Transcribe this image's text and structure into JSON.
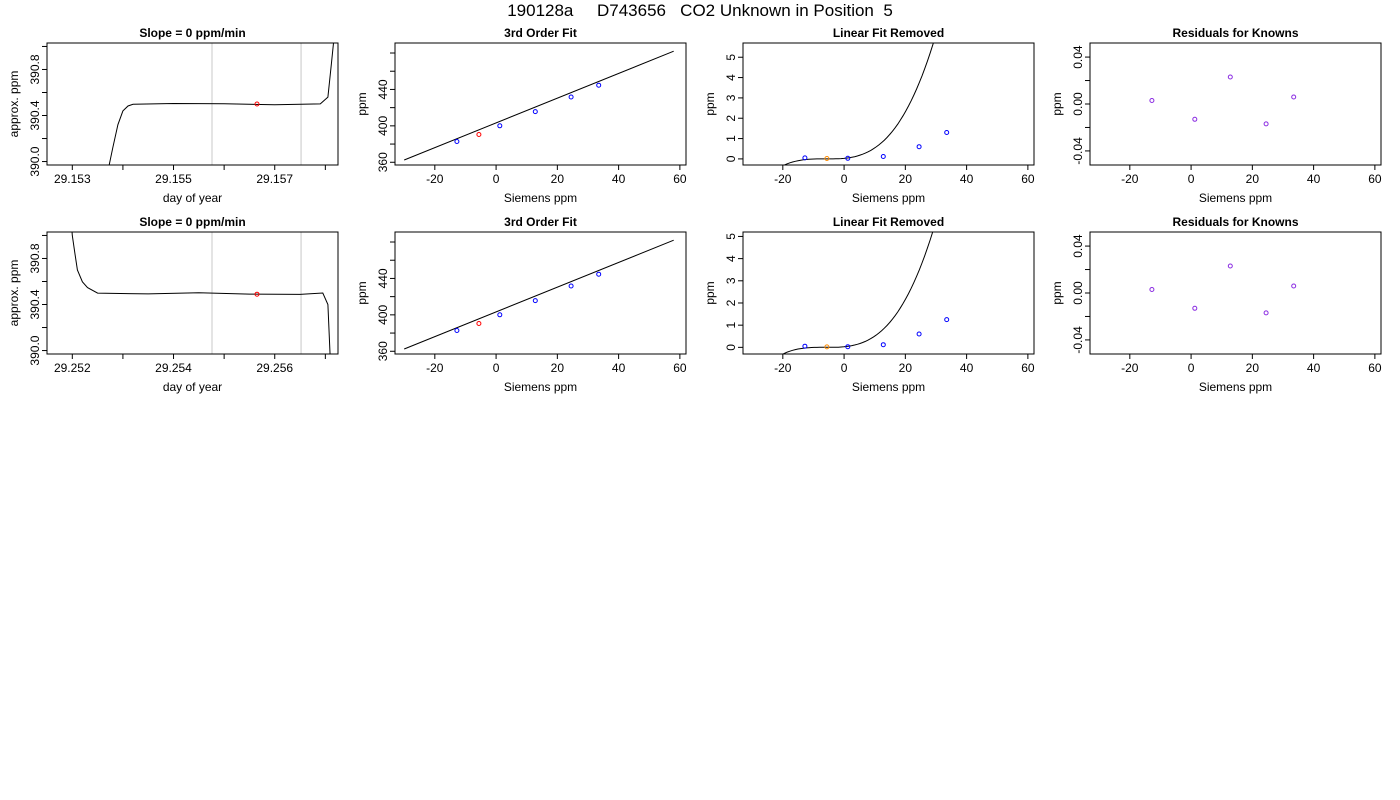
{
  "title": "190128a     D743656   CO2 Unknown in Position  5",
  "colors": {
    "line": "#000000",
    "known": "#0000ff",
    "unknown": "#ff0000",
    "unknown_alt": "#ff8c00",
    "residual": "#8a2be2",
    "marker": "#c8c8c8"
  },
  "chart_data": [
    {
      "type": "line",
      "title": "Slope =  0  ppm/min",
      "xlabel": "day of year",
      "ylabel": "approx. ppm",
      "xlim": [
        29.1525,
        29.15825
      ],
      "ylim": [
        389.97,
        391.03
      ],
      "x_ticks": [
        29.153,
        29.154,
        29.155,
        29.156,
        29.157,
        29.158
      ],
      "x_tick_labels": [
        "29.153",
        "",
        "29.155",
        "",
        "29.157",
        ""
      ],
      "y_ticks": [
        390.0,
        390.2,
        390.4,
        390.6,
        390.8,
        391.0
      ],
      "y_tick_labels": [
        "390.0",
        "",
        "390.4",
        "",
        "390.8",
        ""
      ],
      "vlines": [
        29.15576,
        29.15752
      ],
      "series": [
        {
          "role": "trace",
          "x": [
            29.15372,
            29.1538,
            29.1539,
            29.154,
            29.1541,
            29.1542,
            29.155,
            29.156,
            29.157,
            29.1579,
            29.15805,
            29.15812,
            29.1582
          ],
          "y": [
            389.95,
            390.12,
            390.32,
            390.44,
            390.485,
            390.5,
            390.505,
            390.5,
            390.49,
            390.5,
            390.56,
            390.85,
            391.2
          ]
        },
        {
          "role": "unknown",
          "x": [
            29.15665
          ],
          "y": [
            390.5
          ]
        }
      ]
    },
    {
      "type": "scatter",
      "title": "3rd Order Fit",
      "xlabel": "Siemens ppm",
      "ylabel": "ppm",
      "xlim": [
        -33,
        62
      ],
      "ylim": [
        357,
        491
      ],
      "x_ticks": [
        -20,
        0,
        20,
        40,
        60
      ],
      "x_tick_labels": [
        "-20",
        "0",
        "20",
        "40",
        "60"
      ],
      "y_ticks": [
        360,
        380,
        400,
        420,
        440,
        460,
        480
      ],
      "y_tick_labels": [
        "360",
        "",
        "400",
        "",
        "440",
        "",
        ""
      ],
      "series": [
        {
          "role": "fit",
          "x": [
            -30,
            58
          ],
          "y": [
            362.5,
            482.0
          ]
        },
        {
          "role": "known",
          "x": [
            -12.8,
            1.2,
            12.8,
            24.5,
            33.5
          ],
          "y": [
            382.8,
            400.1,
            415.6,
            431.7,
            444.6
          ]
        },
        {
          "role": "unknown",
          "x": [
            -5.6
          ],
          "y": [
            390.5
          ]
        }
      ]
    },
    {
      "type": "scatter",
      "title": "Linear Fit Removed",
      "xlabel": "Siemens ppm",
      "ylabel": "ppm",
      "xlim": [
        -33,
        62
      ],
      "ylim": [
        -0.3,
        5.7
      ],
      "x_ticks": [
        -20,
        0,
        20,
        40,
        60
      ],
      "x_tick_labels": [
        "-20",
        "0",
        "20",
        "40",
        "60"
      ],
      "y_ticks": [
        0,
        1,
        2,
        3,
        4,
        5
      ],
      "y_tick_labels": [
        "0",
        "1",
        "2",
        "3",
        "4",
        "5"
      ],
      "curve": {
        "x_from": -30,
        "x_to": 58,
        "x0": -5,
        "a": 0.00033,
        "b": 0.0119,
        "c": 0.00013
      },
      "series": [
        {
          "role": "known",
          "x": [
            -12.8,
            1.2,
            12.8,
            24.5,
            33.5
          ],
          "y": [
            0.05,
            0.03,
            0.12,
            0.6,
            1.3
          ]
        },
        {
          "role": "unknown",
          "x": [
            -5.6
          ],
          "y": [
            0.02
          ]
        }
      ]
    },
    {
      "type": "scatter",
      "title": "Residuals for Knowns",
      "xlabel": "Siemens ppm",
      "ylabel": "ppm",
      "xlim": [
        -33,
        62
      ],
      "ylim": [
        -0.052,
        0.052
      ],
      "x_ticks": [
        -20,
        0,
        20,
        40,
        60
      ],
      "x_tick_labels": [
        "-20",
        "0",
        "20",
        "40",
        "60"
      ],
      "y_ticks": [
        -0.04,
        -0.02,
        0.0,
        0.02,
        0.04
      ],
      "y_tick_labels": [
        "-0.04",
        "",
        "0.00",
        "",
        "0.04"
      ],
      "series": [
        {
          "role": "residual",
          "x": [
            -12.8,
            1.2,
            12.8,
            24.5,
            33.5
          ],
          "y": [
            0.003,
            -0.013,
            0.023,
            -0.017,
            0.006
          ]
        }
      ]
    },
    {
      "type": "line",
      "title": "Slope =  0  ppm/min",
      "xlabel": "day of year",
      "ylabel": "approx. ppm",
      "xlim": [
        29.2515,
        29.25725
      ],
      "ylim": [
        389.97,
        391.03
      ],
      "x_ticks": [
        29.252,
        29.253,
        29.254,
        29.255,
        29.256,
        29.257
      ],
      "x_tick_labels": [
        "29.252",
        "",
        "29.254",
        "",
        "29.256",
        ""
      ],
      "y_ticks": [
        390.0,
        390.2,
        390.4,
        390.6,
        390.8,
        391.0
      ],
      "y_tick_labels": [
        "390.0",
        "",
        "390.4",
        "",
        "390.8",
        ""
      ],
      "vlines": [
        29.25476,
        29.25652
      ],
      "series": [
        {
          "role": "trace",
          "x": [
            29.25195,
            29.252,
            29.25205,
            29.2521,
            29.2522,
            29.2523,
            29.2525,
            29.2535,
            29.2545,
            29.2555,
            29.2565,
            29.25695,
            29.25705,
            29.2571
          ],
          "y": [
            391.3,
            391.0,
            390.85,
            390.7,
            390.6,
            390.55,
            390.5,
            390.49,
            390.5,
            390.49,
            390.49,
            390.5,
            390.4,
            389.9
          ]
        },
        {
          "role": "unknown",
          "x": [
            29.25565
          ],
          "y": [
            390.49
          ]
        }
      ]
    },
    {
      "type": "scatter",
      "title": "3rd Order Fit",
      "xlabel": "Siemens ppm",
      "ylabel": "ppm",
      "xlim": [
        -33,
        62
      ],
      "ylim": [
        357,
        491
      ],
      "x_ticks": [
        -20,
        0,
        20,
        40,
        60
      ],
      "x_tick_labels": [
        "-20",
        "0",
        "20",
        "40",
        "60"
      ],
      "y_ticks": [
        360,
        380,
        400,
        420,
        440,
        460,
        480
      ],
      "y_tick_labels": [
        "360",
        "",
        "400",
        "",
        "440",
        "",
        ""
      ],
      "series": [
        {
          "role": "fit",
          "x": [
            -30,
            58
          ],
          "y": [
            362.5,
            482.0
          ]
        },
        {
          "role": "known",
          "x": [
            -12.8,
            1.2,
            12.8,
            24.5,
            33.5
          ],
          "y": [
            382.8,
            400.1,
            415.6,
            431.7,
            444.6
          ]
        },
        {
          "role": "unknown",
          "x": [
            -5.6
          ],
          "y": [
            390.5
          ]
        }
      ]
    },
    {
      "type": "scatter",
      "title": "Linear Fit Removed",
      "xlabel": "Siemens ppm",
      "ylabel": "ppm",
      "xlim": [
        -33,
        62
      ],
      "ylim": [
        -0.3,
        5.2
      ],
      "x_ticks": [
        -20,
        0,
        20,
        40,
        60
      ],
      "x_tick_labels": [
        "-20",
        "0",
        "20",
        "40",
        "60"
      ],
      "y_ticks": [
        0,
        1,
        2,
        3,
        4,
        5
      ],
      "y_tick_labels": [
        "0",
        "1",
        "2",
        "3",
        "4",
        "5"
      ],
      "curve": {
        "x_from": -30,
        "x_to": 58,
        "x0": -5,
        "a": 0.00033,
        "b": 0.0109,
        "c": 0.00012
      },
      "series": [
        {
          "role": "known",
          "x": [
            -12.8,
            1.2,
            12.8,
            24.5,
            33.5
          ],
          "y": [
            0.05,
            0.03,
            0.12,
            0.6,
            1.25
          ]
        },
        {
          "role": "unknown",
          "x": [
            -5.6
          ],
          "y": [
            0.02
          ]
        }
      ]
    },
    {
      "type": "scatter",
      "title": "Residuals for Knowns",
      "xlabel": "Siemens ppm",
      "ylabel": "ppm",
      "xlim": [
        -33,
        62
      ],
      "ylim": [
        -0.052,
        0.052
      ],
      "x_ticks": [
        -20,
        0,
        20,
        40,
        60
      ],
      "x_tick_labels": [
        "-20",
        "0",
        "20",
        "40",
        "60"
      ],
      "y_ticks": [
        -0.04,
        -0.02,
        0.0,
        0.02,
        0.04
      ],
      "y_tick_labels": [
        "-0.04",
        "",
        "0.00",
        "",
        "0.04"
      ],
      "series": [
        {
          "role": "residual",
          "x": [
            -12.8,
            1.2,
            12.8,
            24.5,
            33.5
          ],
          "y": [
            0.003,
            -0.013,
            0.023,
            -0.017,
            0.006
          ]
        }
      ]
    }
  ]
}
